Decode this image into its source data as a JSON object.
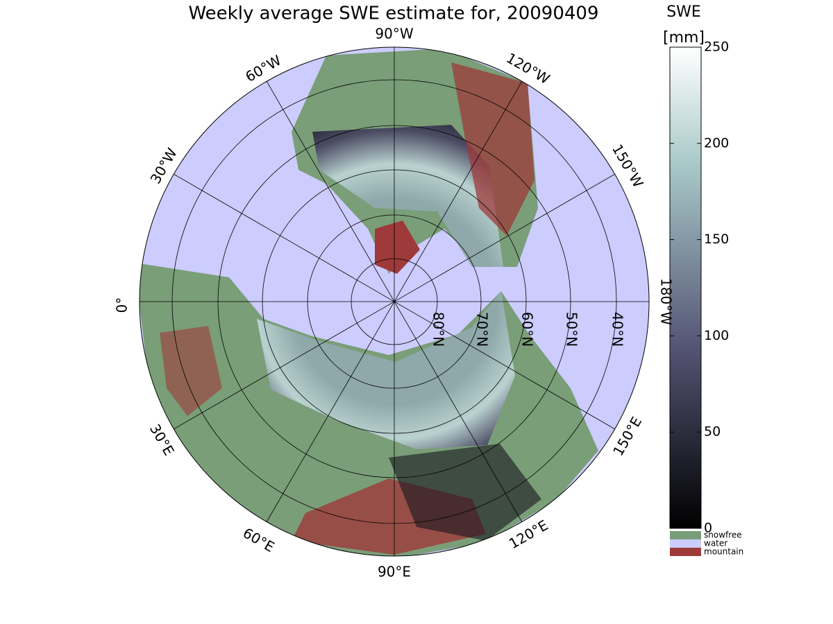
{
  "title": "Weekly average SWE estimate for, 20090409",
  "longitude_labels": [
    "90°W",
    "60°W",
    "120°W",
    "30°W",
    "150°W",
    "0°",
    "180°W",
    "30°E",
    "150°E",
    "60°E",
    "120°E",
    "90°E"
  ],
  "latitude_labels": [
    "80°N",
    "70°N",
    "60°N",
    "50°N",
    "40°N"
  ],
  "colorbar": {
    "label": [
      "SWE",
      "[mm]"
    ],
    "lim": [
      0,
      250
    ],
    "ticks": [
      0,
      50,
      100,
      150,
      200,
      250
    ]
  },
  "legend": [
    {
      "name": "snowfree",
      "color": "#7a9e78"
    },
    {
      "name": "water",
      "color": "#ccccff"
    },
    {
      "name": "mountain",
      "color": "#9e3a3a"
    }
  ]
}
